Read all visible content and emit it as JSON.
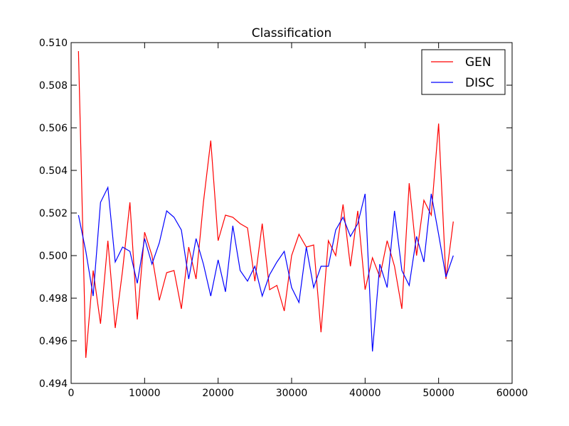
{
  "chart_data": {
    "type": "line",
    "title": "Classification",
    "xlabel": "",
    "ylabel": "",
    "xlim": [
      0,
      60000
    ],
    "ylim": [
      0.494,
      0.51
    ],
    "xticks": [
      0,
      10000,
      20000,
      30000,
      40000,
      50000,
      60000
    ],
    "xtick_labels": [
      "0",
      "10000",
      "20000",
      "30000",
      "40000",
      "50000",
      "60000"
    ],
    "yticks": [
      0.494,
      0.496,
      0.498,
      0.5,
      0.502,
      0.504,
      0.506,
      0.508,
      0.51
    ],
    "ytick_labels": [
      "0.494",
      "0.496",
      "0.498",
      "0.500",
      "0.502",
      "0.504",
      "0.506",
      "0.508",
      "0.510"
    ],
    "grid": false,
    "legend_position": "top-right",
    "x": [
      1000,
      2000,
      3000,
      4000,
      5000,
      6000,
      7000,
      8000,
      9000,
      10000,
      11000,
      12000,
      13000,
      14000,
      15000,
      16000,
      17000,
      18000,
      19000,
      20000,
      21000,
      22000,
      23000,
      24000,
      25000,
      26000,
      27000,
      28000,
      29000,
      30000,
      31000,
      32000,
      33000,
      34000,
      35000,
      36000,
      37000,
      38000,
      39000,
      40000,
      41000,
      42000,
      43000,
      44000,
      45000,
      46000,
      47000,
      48000,
      49000,
      50000,
      51000,
      52000
    ],
    "series": [
      {
        "name": "GEN",
        "color": "#ff0000",
        "values": [
          0.5096,
          0.4952,
          0.4993,
          0.4968,
          0.5007,
          0.4966,
          0.4993,
          0.5025,
          0.497,
          0.5011,
          0.5,
          0.4979,
          0.4992,
          0.4993,
          0.4975,
          0.5004,
          0.4989,
          0.5025,
          0.5054,
          0.5007,
          0.5019,
          0.5018,
          0.5015,
          0.5013,
          0.4988,
          0.5015,
          0.4984,
          0.4986,
          0.4974,
          0.5,
          0.501,
          0.5004,
          0.5005,
          0.4964,
          0.5007,
          0.5,
          0.5024,
          0.4995,
          0.5021,
          0.4984,
          0.4999,
          0.499,
          0.5007,
          0.4995,
          0.4975,
          0.5034,
          0.5,
          0.5026,
          0.5019,
          0.5062,
          0.4989,
          0.5016
        ]
      },
      {
        "name": "DISC",
        "color": "#0000ff",
        "values": [
          0.5019,
          0.5002,
          0.4981,
          0.5025,
          0.5032,
          0.4997,
          0.5004,
          0.5002,
          0.4987,
          0.5008,
          0.4996,
          0.5006,
          0.5021,
          0.5018,
          0.5012,
          0.4989,
          0.5008,
          0.4996,
          0.4981,
          0.4998,
          0.4983,
          0.5014,
          0.4993,
          0.4988,
          0.4995,
          0.4981,
          0.4991,
          0.4997,
          0.5002,
          0.4985,
          0.4978,
          0.5004,
          0.4985,
          0.4995,
          0.4995,
          0.5012,
          0.5018,
          0.5009,
          0.5015,
          0.5029,
          0.4955,
          0.4996,
          0.4985,
          0.5021,
          0.4993,
          0.4986,
          0.5009,
          0.4997,
          0.5029,
          0.501,
          0.499,
          0.5
        ]
      }
    ]
  }
}
